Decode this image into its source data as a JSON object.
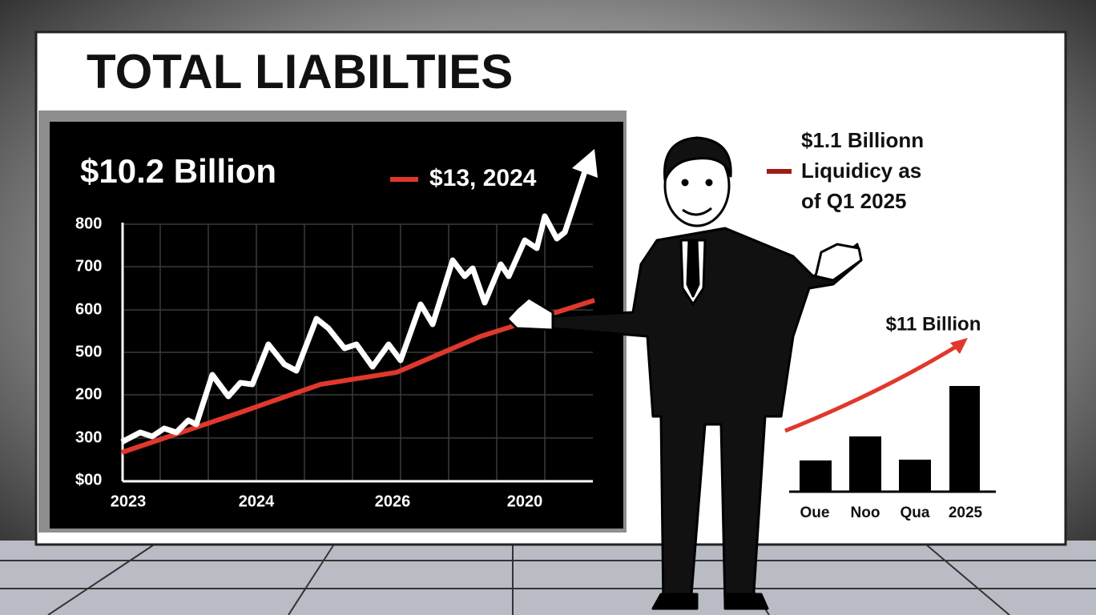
{
  "title": "TOTAL LIABILTIES",
  "left_panel": {
    "headline": "$10.2 Billion",
    "legend": "$13, 2024",
    "y_labels": [
      "800",
      "700",
      "600",
      "500",
      "200",
      "300",
      "$00"
    ],
    "x_labels": [
      "2023",
      "2024",
      "2026",
      "2020"
    ]
  },
  "right_panel": {
    "note_lines": [
      "$1.1 Billionn",
      "Liquidicy as",
      "of Q1 2025"
    ],
    "arrow_label": "$11 Billion",
    "bar_labels": [
      "Oue",
      "Noo",
      "Qua",
      "2025"
    ]
  }
}
